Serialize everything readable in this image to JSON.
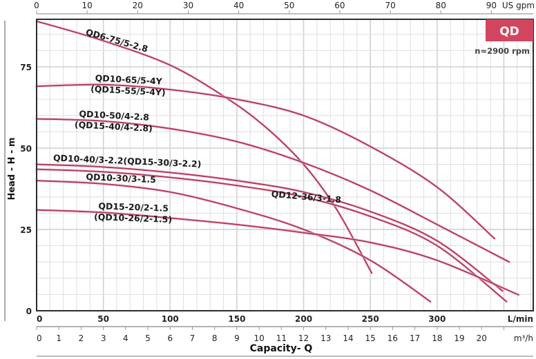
{
  "chart_data": {
    "type": "line",
    "title": "QD",
    "subtitle": "n≈2900 rpm",
    "xlabel": "Capacity- Q",
    "ylabel": "Head - H - m",
    "x_unit_primary": "L/min",
    "x_unit_secondary": "m³/h",
    "x_unit_top": "US gpm",
    "xlim": [
      0,
      372
    ],
    "ylim": [
      0,
      89.6
    ],
    "grid": true,
    "y_ticks": [
      "0",
      "25",
      "50",
      "75"
    ],
    "x_ticks_lmin": [
      "0",
      "50",
      "100",
      "150",
      "200",
      "250",
      "300"
    ],
    "x_ticks_m3h": [
      "0",
      "1",
      "2",
      "3",
      "4",
      "5",
      "6",
      "7",
      "8",
      "9",
      "10",
      "11",
      "12",
      "13",
      "14",
      "15",
      "16",
      "17",
      "18",
      "19",
      "20"
    ],
    "x_ticks_gpm": [
      "0",
      "10",
      "20",
      "30",
      "40",
      "50",
      "60",
      "70",
      "80",
      "90"
    ],
    "accent_color": "#d2455f",
    "curve_color": "#b23a5c",
    "series": [
      {
        "name": "QD6-75/5-2.8",
        "x": [
          0,
          50,
          100,
          140,
          170,
          200,
          225,
          251
        ],
        "y": [
          89,
          83,
          75.5,
          66,
          57,
          45,
          31,
          11.6
        ]
      },
      {
        "name": "QD10-65/5-4Y (QD15-55/5-4Y)",
        "x": [
          0,
          50,
          100,
          150,
          200,
          250,
          300,
          343
        ],
        "y": [
          69,
          69.5,
          68,
          65,
          60,
          50.5,
          38,
          22.2
        ]
      },
      {
        "name": "QD10-50/4-2.8 (QD15-40/4-2.8)",
        "x": [
          0,
          50,
          100,
          150,
          200,
          250,
          300,
          354
        ],
        "y": [
          59,
          58.3,
          56,
          52,
          45.5,
          37,
          26.5,
          15
        ]
      },
      {
        "name": "QD10-40/3-2.2 (QD15-30/3-2.2)",
        "x": [
          0,
          50,
          100,
          150,
          200,
          250,
          300,
          349
        ],
        "y": [
          45,
          44.2,
          42.5,
          40,
          36.5,
          30.5,
          21.5,
          6.1
        ]
      },
      {
        "name": "QD12-36/3-1.8",
        "x": [
          0,
          50,
          100,
          150,
          200,
          250,
          300,
          352
        ],
        "y": [
          43.5,
          42.7,
          41,
          38.5,
          35,
          29,
          20,
          2.8
        ]
      },
      {
        "name": "QD10-30/3-1.5",
        "x": [
          0,
          50,
          100,
          150,
          200,
          250,
          295
        ],
        "y": [
          40,
          39,
          36.5,
          31.5,
          25,
          15.5,
          2.8
        ]
      },
      {
        "name": "QD15-20/2-1.5 (QD10-26/2-1.5)",
        "x": [
          0,
          50,
          100,
          150,
          200,
          250,
          300,
          361
        ],
        "y": [
          31,
          30.2,
          28.5,
          26.5,
          24,
          21,
          15.5,
          4.9
        ]
      }
    ],
    "labels": [
      {
        "series": 0,
        "lines": [
          "QD6-75/5-2.8"
        ]
      },
      {
        "series": 1,
        "lines": [
          "QD10-65/5-4Y",
          "(QD15-55/5-4Y)"
        ]
      },
      {
        "series": 2,
        "lines": [
          "QD10-50/4-2.8",
          "(QD15-40/4-2.8)"
        ]
      },
      {
        "series": 3,
        "lines": [
          "QD10-40/3-2.2(QD15-30/3-2.2)"
        ]
      },
      {
        "series": 4,
        "lines": [
          "QD12-36/3-1.8"
        ]
      },
      {
        "series": 5,
        "lines": [
          "QD10-30/3-1.5"
        ]
      },
      {
        "series": 6,
        "lines": [
          "QD15-20/2-1.5",
          "(QD10-26/2-1.5)"
        ]
      }
    ]
  }
}
